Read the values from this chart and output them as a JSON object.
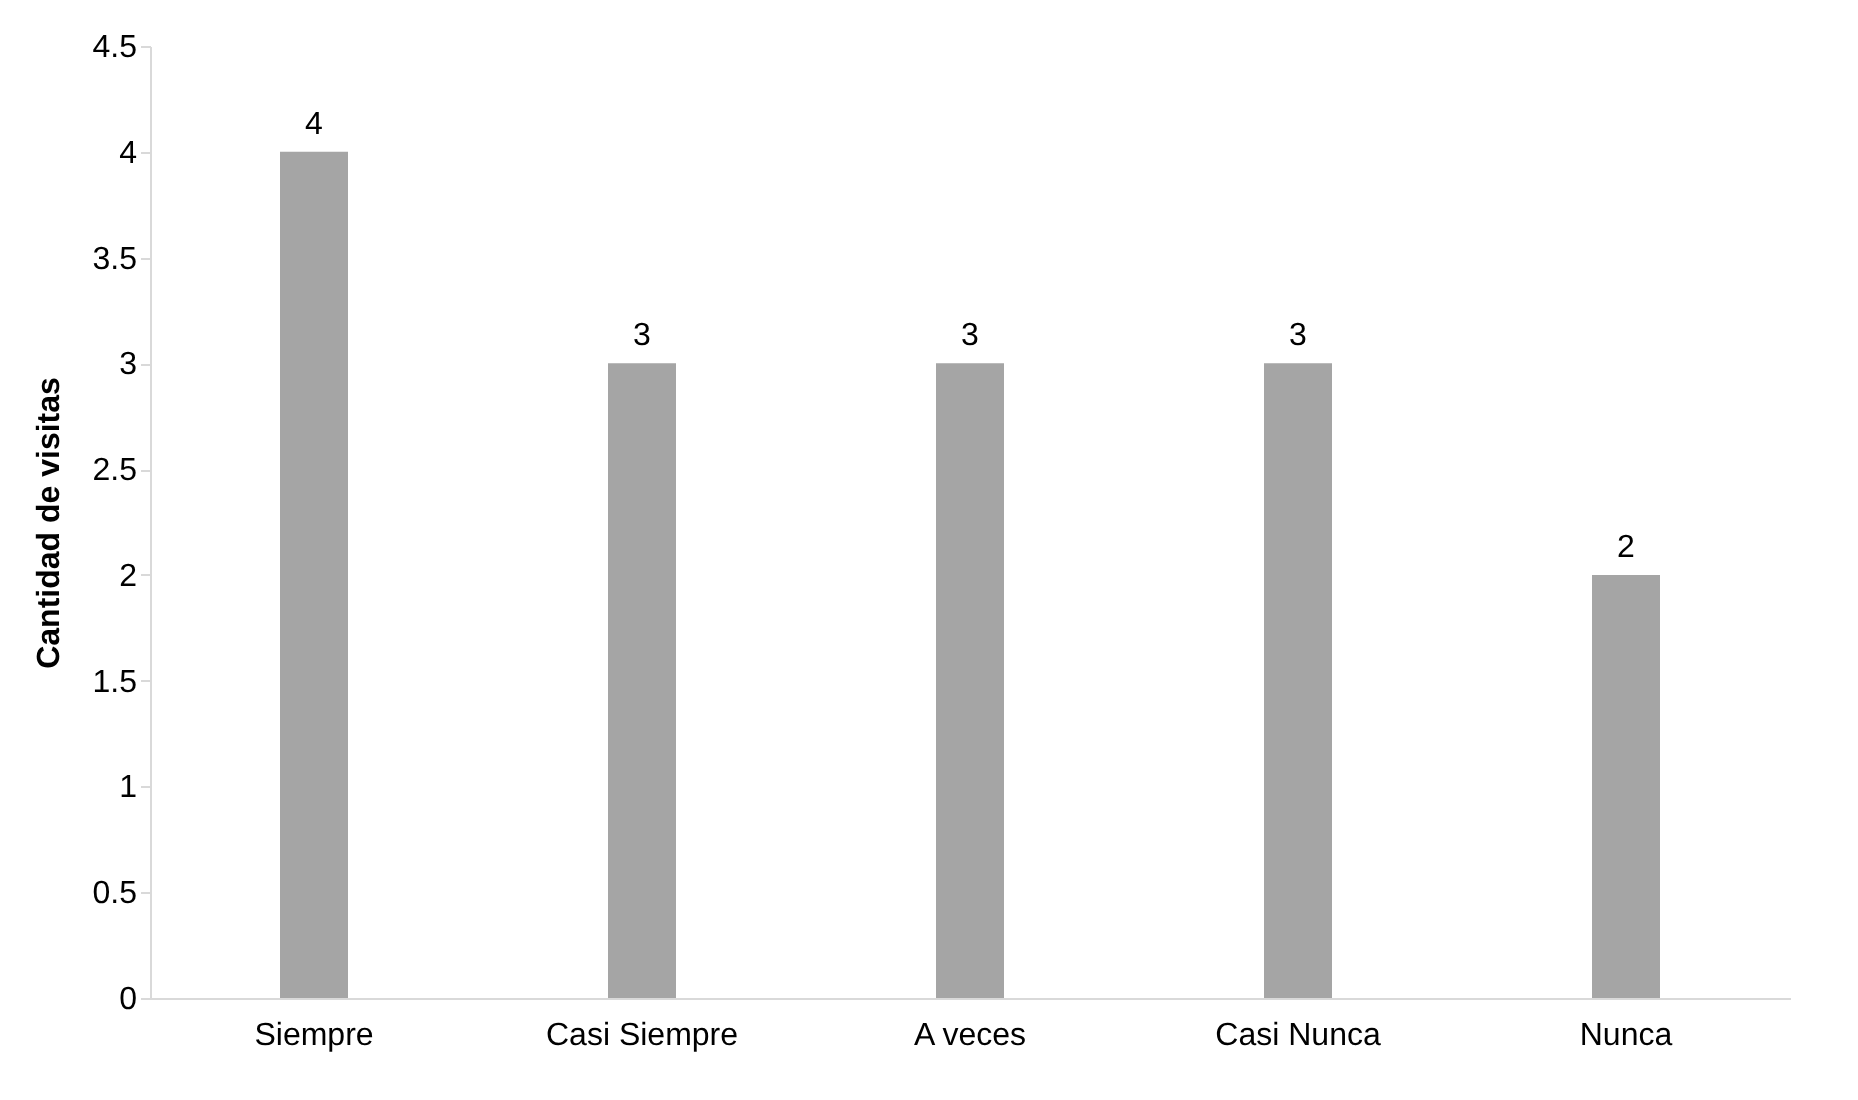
{
  "chart_data": {
    "type": "bar",
    "ylabel": "Cantidad de visitas",
    "categories": [
      "Siempre",
      "Casi Siempre",
      "A veces",
      "Casi Nunca",
      "Nunca"
    ],
    "values": [
      4,
      3,
      3,
      3,
      2
    ],
    "color": "#a5a5a5",
    "ylim": [
      0,
      4.5
    ],
    "yticks": [
      0,
      0.5,
      1,
      1.5,
      2,
      2.5,
      3,
      3.5,
      4,
      4.5
    ],
    "grid": false,
    "data_labels": true
  }
}
